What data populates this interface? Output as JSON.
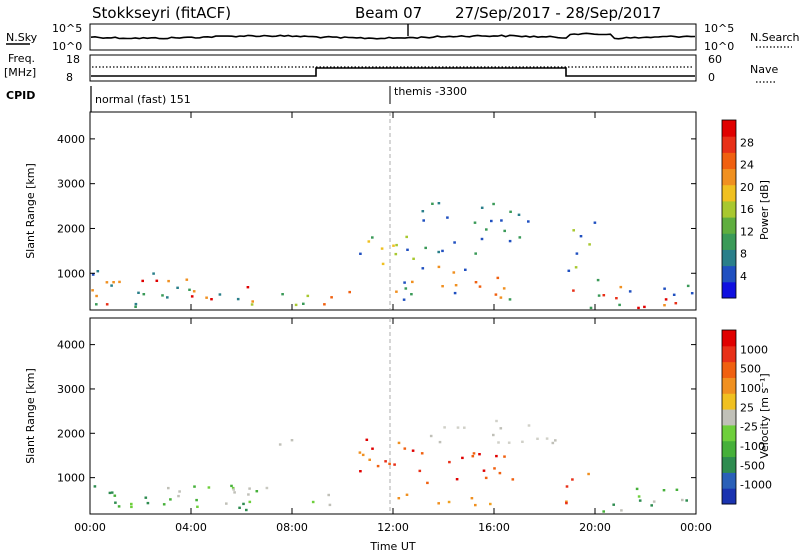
{
  "header": {
    "station": "Stokkseyri (fitACF)",
    "beam": "Beam 07",
    "date_range": "27/Sep/2017 - 28/Sep/2017"
  },
  "strip": {
    "nsky_label": "N.Sky",
    "nsearch_label": "N.Search",
    "freq_label": "Freq.",
    "freq_unit": "[MHz]",
    "nave_label": "Nave",
    "cpid_label": "CPID",
    "nsky_ticks": [
      "10^5",
      "10^0"
    ],
    "nsearch_ticks": [
      "10^5",
      "10^0"
    ],
    "freq_ticks": [
      "18",
      "8"
    ],
    "nave_ticks": [
      "60",
      "0"
    ],
    "cpid_segments": [
      {
        "start_hour": 0.0,
        "label": "normal (fast) 151"
      },
      {
        "start_hour": 12.0,
        "label": "themis -3300"
      }
    ]
  },
  "chart_data": [
    {
      "type": "heatmap",
      "title": "",
      "xlabel": "",
      "ylabel": "Slant Range [km]",
      "xlim": [
        0,
        24
      ],
      "ylim": [
        180,
        4600
      ],
      "y_ticks": [
        "1000",
        "2000",
        "3000",
        "4000"
      ],
      "colorbar": {
        "label": "Power [dB]",
        "ticks": [
          "4",
          "8",
          "12",
          "16",
          "20",
          "24",
          "28"
        ],
        "colors": [
          "#1010e0",
          "#2050c0",
          "#2a7f8a",
          "#3a9a58",
          "#5fae3f",
          "#a8c830",
          "#f0c020",
          "#f09020",
          "#f06010",
          "#e83018",
          "#e00000"
        ]
      }
    },
    {
      "type": "heatmap",
      "title": "",
      "xlabel": "Time UT",
      "ylabel": "Slant Range [km]",
      "xlim": [
        0,
        24
      ],
      "ylim": [
        180,
        4600
      ],
      "x_ticks": [
        "00:00",
        "04:00",
        "08:00",
        "12:00",
        "16:00",
        "20:00",
        "00:00"
      ],
      "y_ticks": [
        "1000",
        "2000",
        "3000",
        "4000"
      ],
      "colorbar": {
        "label": "Velocity [m s⁻¹]",
        "ticks": [
          "1000",
          "500",
          "100",
          "25",
          "-25",
          "-100",
          "-500",
          "-1000"
        ],
        "colors": [
          "#1a33b0",
          "#2a60b8",
          "#2e8c50",
          "#46b03a",
          "#6ecf3c",
          "#c0c0b8",
          "#f0c020",
          "#f09020",
          "#f06010",
          "#e83018",
          "#e00000"
        ]
      }
    }
  ]
}
